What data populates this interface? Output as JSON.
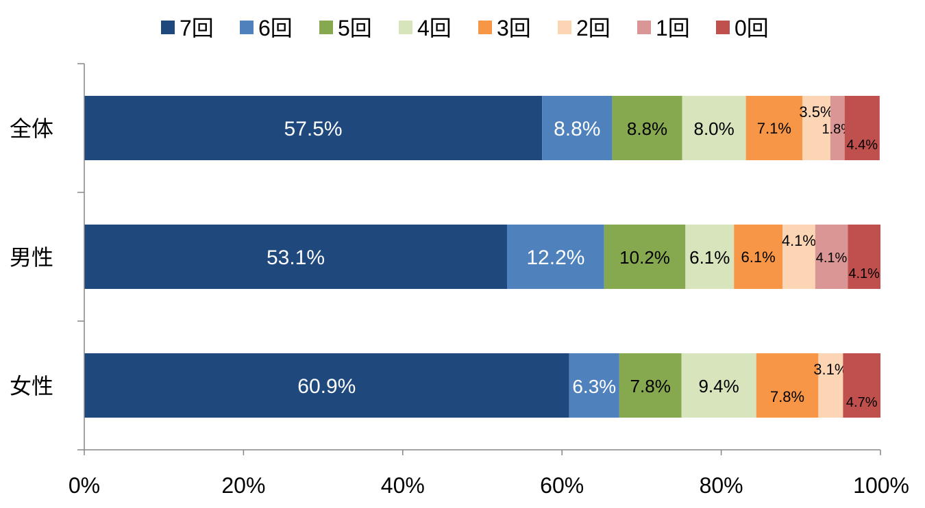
{
  "chart_data": {
    "type": "bar",
    "orientation": "horizontal",
    "stacked": true,
    "categories": [
      "全体",
      "男性",
      "女性"
    ],
    "series": [
      {
        "name": "7回",
        "color": "#1f497d",
        "values": [
          57.5,
          53.1,
          60.9
        ],
        "labels": [
          "57.5%",
          "53.1%",
          "60.9%"
        ]
      },
      {
        "name": "6回",
        "color": "#4f81bd",
        "values": [
          8.8,
          12.2,
          6.3
        ],
        "labels": [
          "8.8%",
          "12.2%",
          "6.3%"
        ]
      },
      {
        "name": "5回",
        "color": "#86a84f",
        "values": [
          8.8,
          10.2,
          7.8
        ],
        "labels": [
          "8.8%",
          "10.2%",
          "7.8%"
        ]
      },
      {
        "name": "4回",
        "color": "#d8e4bc",
        "values": [
          8.0,
          6.1,
          9.4
        ],
        "labels": [
          "8.0%",
          "6.1%",
          "9.4%"
        ]
      },
      {
        "name": "3回",
        "color": "#f79646",
        "values": [
          7.1,
          6.1,
          7.8
        ],
        "labels": [
          "7.1%",
          "6.1%",
          "7.8%"
        ]
      },
      {
        "name": "2回",
        "color": "#fcd5b4",
        "values": [
          3.5,
          4.1,
          3.1
        ],
        "labels": [
          "3.5%",
          "4.1%",
          "3.1%"
        ]
      },
      {
        "name": "1回",
        "color": "#da9694",
        "values": [
          1.8,
          4.1,
          0
        ],
        "labels": [
          "1.8%",
          "4.1%",
          ""
        ]
      },
      {
        "name": "0回",
        "color": "#c0504d",
        "values": [
          4.4,
          4.1,
          4.7
        ],
        "labels": [
          "4.4%",
          "4.1%",
          "4.7%"
        ]
      }
    ],
    "x_ticks": [
      "0%",
      "20%",
      "40%",
      "60%",
      "80%",
      "100%"
    ],
    "xlim": [
      0,
      100
    ],
    "legend_position": "top",
    "grid": false
  }
}
